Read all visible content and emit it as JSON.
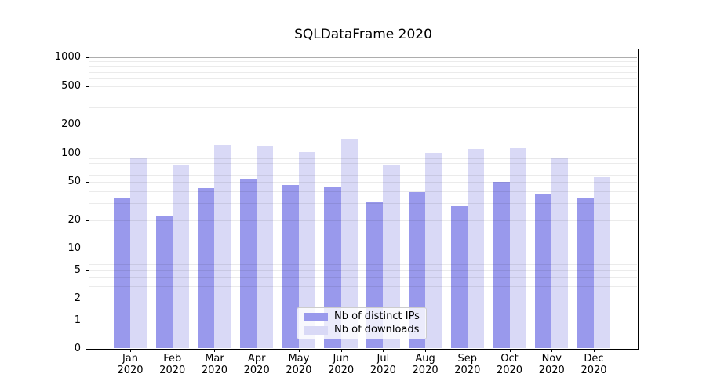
{
  "chart_data": {
    "type": "bar",
    "title": "SQLDataFrame 2020",
    "x_year_line": "2020",
    "categories": [
      "Jan",
      "Feb",
      "Mar",
      "Apr",
      "May",
      "Jun",
      "Jul",
      "Aug",
      "Sep",
      "Oct",
      "Nov",
      "Dec"
    ],
    "series": [
      {
        "name": "Nb of distinct IPs",
        "color": "#9999ec",
        "values": [
          34,
          22,
          43,
          54,
          47,
          45,
          31,
          39,
          28,
          50,
          37,
          34
        ]
      },
      {
        "name": "Nb of downloads",
        "color": "#d9d9f6",
        "values": [
          90,
          75,
          122,
          120,
          104,
          143,
          77,
          101,
          112,
          114,
          90,
          57
        ]
      }
    ],
    "yscale": "symlog",
    "y_ticks": [
      0,
      1,
      2,
      5,
      10,
      20,
      50,
      100,
      200,
      500,
      1000
    ],
    "y_major_gridlines": [
      1,
      10,
      100,
      1000
    ],
    "y_minor_gridline_decades": [
      1,
      10,
      100
    ],
    "ylim": [
      0,
      1300
    ],
    "grid": "horizontal major+minor",
    "legend_position": "lower center"
  },
  "colors": {
    "bar_distinct_ips": "#9999ec",
    "bar_downloads": "#d9d9f6",
    "grid_major": "#b0b0b0",
    "grid_minor": "#ededed",
    "axis": "#000000",
    "legend_border": "#cccccc",
    "background": "#ffffff"
  }
}
